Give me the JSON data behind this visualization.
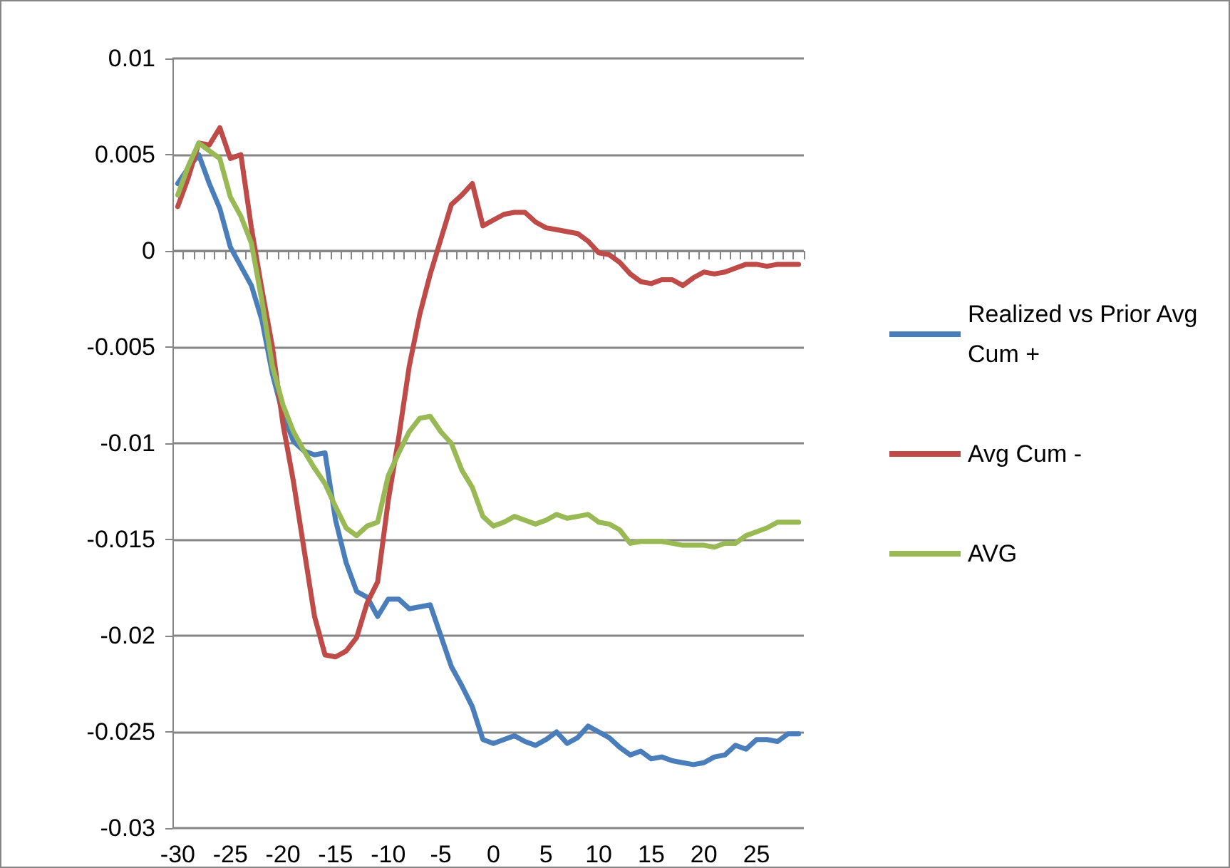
{
  "chart_data": {
    "type": "line",
    "categories": [
      "-30",
      null,
      null,
      null,
      null,
      "-25",
      null,
      null,
      null,
      null,
      "-20",
      null,
      null,
      null,
      null,
      "-15",
      null,
      null,
      null,
      null,
      "-10",
      null,
      null,
      null,
      null,
      "-5",
      null,
      null,
      null,
      null,
      "0",
      null,
      null,
      null,
      null,
      "5",
      null,
      null,
      null,
      null,
      "10",
      null,
      null,
      null,
      null,
      "15",
      null,
      null,
      null,
      null,
      "20",
      null,
      null,
      null,
      null,
      "25",
      null,
      null,
      null,
      null
    ],
    "series": [
      {
        "name": "Realized vs Prior Avg Cum +",
        "color": "#4a7ebb",
        "values": [
          0.0035,
          0.0043,
          0.005,
          0.0035,
          0.0022,
          0.0002,
          -0.0008,
          -0.0018,
          -0.0036,
          -0.0064,
          -0.0085,
          -0.0099,
          -0.0104,
          -0.0106,
          -0.0105,
          -0.014,
          -0.0162,
          -0.0177,
          -0.018,
          -0.019,
          -0.0181,
          -0.0181,
          -0.0186,
          -0.0185,
          -0.0184,
          -0.02,
          -0.0216,
          -0.0226,
          -0.0237,
          -0.0254,
          -0.0256,
          -0.0254,
          -0.0252,
          -0.0255,
          -0.0257,
          -0.0254,
          -0.025,
          -0.0256,
          -0.0253,
          -0.0247,
          -0.025,
          -0.0253,
          -0.0258,
          -0.0262,
          -0.026,
          -0.0264,
          -0.0263,
          -0.0265,
          -0.0266,
          -0.0267,
          -0.0266,
          -0.0263,
          -0.0262,
          -0.0257,
          -0.0259,
          -0.0254,
          -0.0254,
          -0.0255,
          -0.0251,
          -0.0251
        ]
      },
      {
        "name": "Avg Cum -",
        "color": "#be4b48",
        "values": [
          0.0023,
          0.0038,
          0.0056,
          0.0055,
          0.0064,
          0.0048,
          0.005,
          0.0012,
          -0.002,
          -0.005,
          -0.009,
          -0.012,
          -0.0155,
          -0.019,
          -0.021,
          -0.0211,
          -0.0208,
          -0.0201,
          -0.0183,
          -0.0172,
          -0.013,
          -0.0097,
          -0.006,
          -0.0033,
          -0.0012,
          0.0006,
          0.0024,
          0.0029,
          0.0035,
          0.0013,
          0.0016,
          0.0019,
          0.002,
          0.002,
          0.0015,
          0.0012,
          0.0011,
          0.001,
          0.0009,
          0.0005,
          -0.0001,
          -0.0002,
          -0.0006,
          -0.0012,
          -0.0016,
          -0.0017,
          -0.0015,
          -0.0015,
          -0.0018,
          -0.0014,
          -0.0011,
          -0.0012,
          -0.0011,
          -0.0009,
          -0.0007,
          -0.0007,
          -0.0008,
          -0.0007,
          -0.0007,
          -0.0007
        ]
      },
      {
        "name": "AVG",
        "color": "#98b954",
        "values": [
          0.0029,
          0.0044,
          0.0056,
          0.0052,
          0.0048,
          0.0028,
          0.0018,
          0.0004,
          -0.0026,
          -0.006,
          -0.008,
          -0.0094,
          -0.0104,
          -0.0113,
          -0.0121,
          -0.0133,
          -0.0144,
          -0.0148,
          -0.0143,
          -0.0141,
          -0.0117,
          -0.0105,
          -0.0094,
          -0.0087,
          -0.0086,
          -0.0094,
          -0.01,
          -0.0114,
          -0.0123,
          -0.0138,
          -0.0143,
          -0.0141,
          -0.0138,
          -0.014,
          -0.0142,
          -0.014,
          -0.0137,
          -0.0139,
          -0.0138,
          -0.0137,
          -0.0141,
          -0.0142,
          -0.0145,
          -0.0152,
          -0.0151,
          -0.0151,
          -0.0151,
          -0.0152,
          -0.0153,
          -0.0153,
          -0.0153,
          -0.0154,
          -0.0152,
          -0.0152,
          -0.0148,
          -0.0146,
          -0.0144,
          -0.0141,
          -0.0141,
          -0.0141
        ]
      }
    ],
    "ylim": [
      -0.03,
      0.01
    ],
    "yticks": [
      -0.03,
      -0.025,
      -0.02,
      -0.015,
      -0.01,
      -0.005,
      0,
      0.005,
      0.01
    ],
    "grid": "y",
    "legend": "right",
    "marker": "none",
    "line_style": "solid"
  }
}
